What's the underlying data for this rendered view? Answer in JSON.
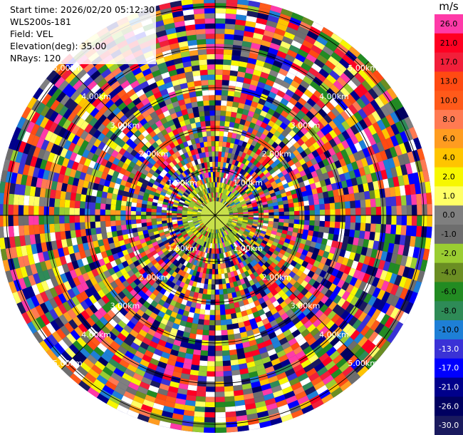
{
  "header": {
    "start_time": "Start time: 2026/02/20 05:12:30",
    "site": "WLS200s-181",
    "field": "Field: VEL",
    "elevation": "Elevation(deg): 35.00",
    "nrays": "NRays: 120"
  },
  "colorbar": {
    "unit": "m/s",
    "bins": [
      {
        "label": "26.0",
        "color": "#ff3aa8"
      },
      {
        "label": "21.0",
        "color": "#ff0022"
      },
      {
        "label": "17.0",
        "color": "#f21f3a"
      },
      {
        "label": "13.0",
        "color": "#ff4a12"
      },
      {
        "label": "10.0",
        "color": "#ff5a1a"
      },
      {
        "label": "8.0",
        "color": "#ff7a52"
      },
      {
        "label": "6.0",
        "color": "#ff9c20"
      },
      {
        "label": "4.0",
        "color": "#ffc400"
      },
      {
        "label": "2.0",
        "color": "#f7f700"
      },
      {
        "label": "1.0",
        "color": "#ffff66"
      },
      {
        "label": "0.0",
        "color": "#7f7f7f"
      },
      {
        "label": "-1.0",
        "color": "#6e6e6e"
      },
      {
        "label": "-2.0",
        "color": "#9acd32"
      },
      {
        "label": "-4.0",
        "color": "#6b8e23"
      },
      {
        "label": "-6.0",
        "color": "#228b22"
      },
      {
        "label": "-8.0",
        "color": "#2e8b57"
      },
      {
        "label": "-10.0",
        "color": "#1e7fd6"
      },
      {
        "label": "-13.0",
        "color": "#3a32d6"
      },
      {
        "label": "-17.0",
        "color": "#0000ff"
      },
      {
        "label": "-21.0",
        "color": "#00008b"
      },
      {
        "label": "-26.0",
        "color": "#000060"
      },
      {
        "label": "-30.0",
        "color": "#1a1a5e"
      }
    ]
  },
  "chart_data": {
    "type": "heatmap",
    "projection": "polar-ppi",
    "field": "VEL",
    "nrays": 120,
    "range_rings": [
      {
        "label": "1.00km",
        "radius_km": 1.0
      },
      {
        "label": "2.00km",
        "radius_km": 2.0
      },
      {
        "label": "3.00km",
        "radius_km": 3.0
      },
      {
        "label": "4.00km",
        "radius_km": 4.0
      },
      {
        "label": "5.00km",
        "radius_km": 5.0
      }
    ],
    "max_range_km": 5.0,
    "ring_label_angles_deg": [
      -45,
      45,
      135,
      -135
    ],
    "grid": true,
    "value_range": [
      -30,
      26
    ]
  }
}
